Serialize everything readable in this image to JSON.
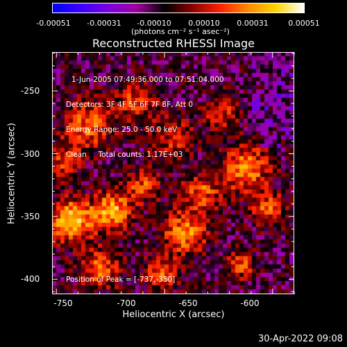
{
  "colorbar": {
    "tick_labels": [
      "-0.00051",
      "-0.00031",
      "-0.00010",
      "0.00010",
      "0.00031",
      "0.00051"
    ],
    "units": "(photons cm⁻² s⁻¹ asec⁻²)",
    "colors": [
      "#0000ff",
      "#3a00ff",
      "#7a00e0",
      "#a000a0",
      "#000000",
      "#8a0000",
      "#ff2000",
      "#ff8a00",
      "#ffd400",
      "#ffffff"
    ]
  },
  "title": "Reconstructed RHESSI Image",
  "info": {
    "time_range": "1-Jun-2005 07:49:36.000 to 07:51:04.000",
    "detectors": "Detectors: 3F 4F 5F 6F 7F 8F, Att 0",
    "energy_range": "Energy Range: 25.0 - 50.0 keV",
    "clean_counts": "Clean     Total counts: 1.17E+03",
    "peak_position": "Position of Peak = [-737,-350]"
  },
  "axes": {
    "xlabel": "Heliocentric X (arcsec)",
    "ylabel": "Heliocentric Y (arcsec)",
    "xlim": [
      -752,
      -640
    ],
    "ylim": [
      -412,
      -219
    ],
    "xticks": [
      "-750",
      "-700",
      "-650",
      "-600"
    ],
    "yticks": [
      "-250",
      "-300",
      "-350",
      "-400"
    ]
  },
  "timestamp": "30-Apr-2022 09:08"
}
